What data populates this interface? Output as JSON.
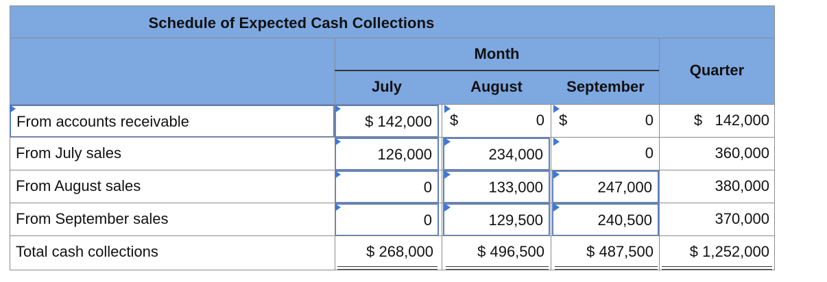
{
  "title": "Schedule of Expected Cash Collections",
  "headers": {
    "month": "Month",
    "quarter": "Quarter",
    "months": [
      "July",
      "August",
      "September"
    ]
  },
  "rows": [
    {
      "label": "From accounts receivable",
      "july": "$ 142,000",
      "aug_sym": "$",
      "aug": "0",
      "sep_sym": "$",
      "sep": "0",
      "quarter": "$   142,000"
    },
    {
      "label": "From July sales",
      "july": "126,000",
      "aug": "234,000",
      "sep": "0",
      "quarter": "360,000"
    },
    {
      "label": "From August sales",
      "july": "0",
      "aug": "133,000",
      "sep": "247,000",
      "quarter": "380,000"
    },
    {
      "label": "From September sales",
      "july": "0",
      "aug": "129,500",
      "sep": "240,500",
      "quarter": "370,000"
    }
  ],
  "total": {
    "label": "Total cash collections",
    "july": "$ 268,000",
    "aug": "$ 496,500",
    "sep": "$ 487,500",
    "quarter": "$ 1,252,000"
  }
}
